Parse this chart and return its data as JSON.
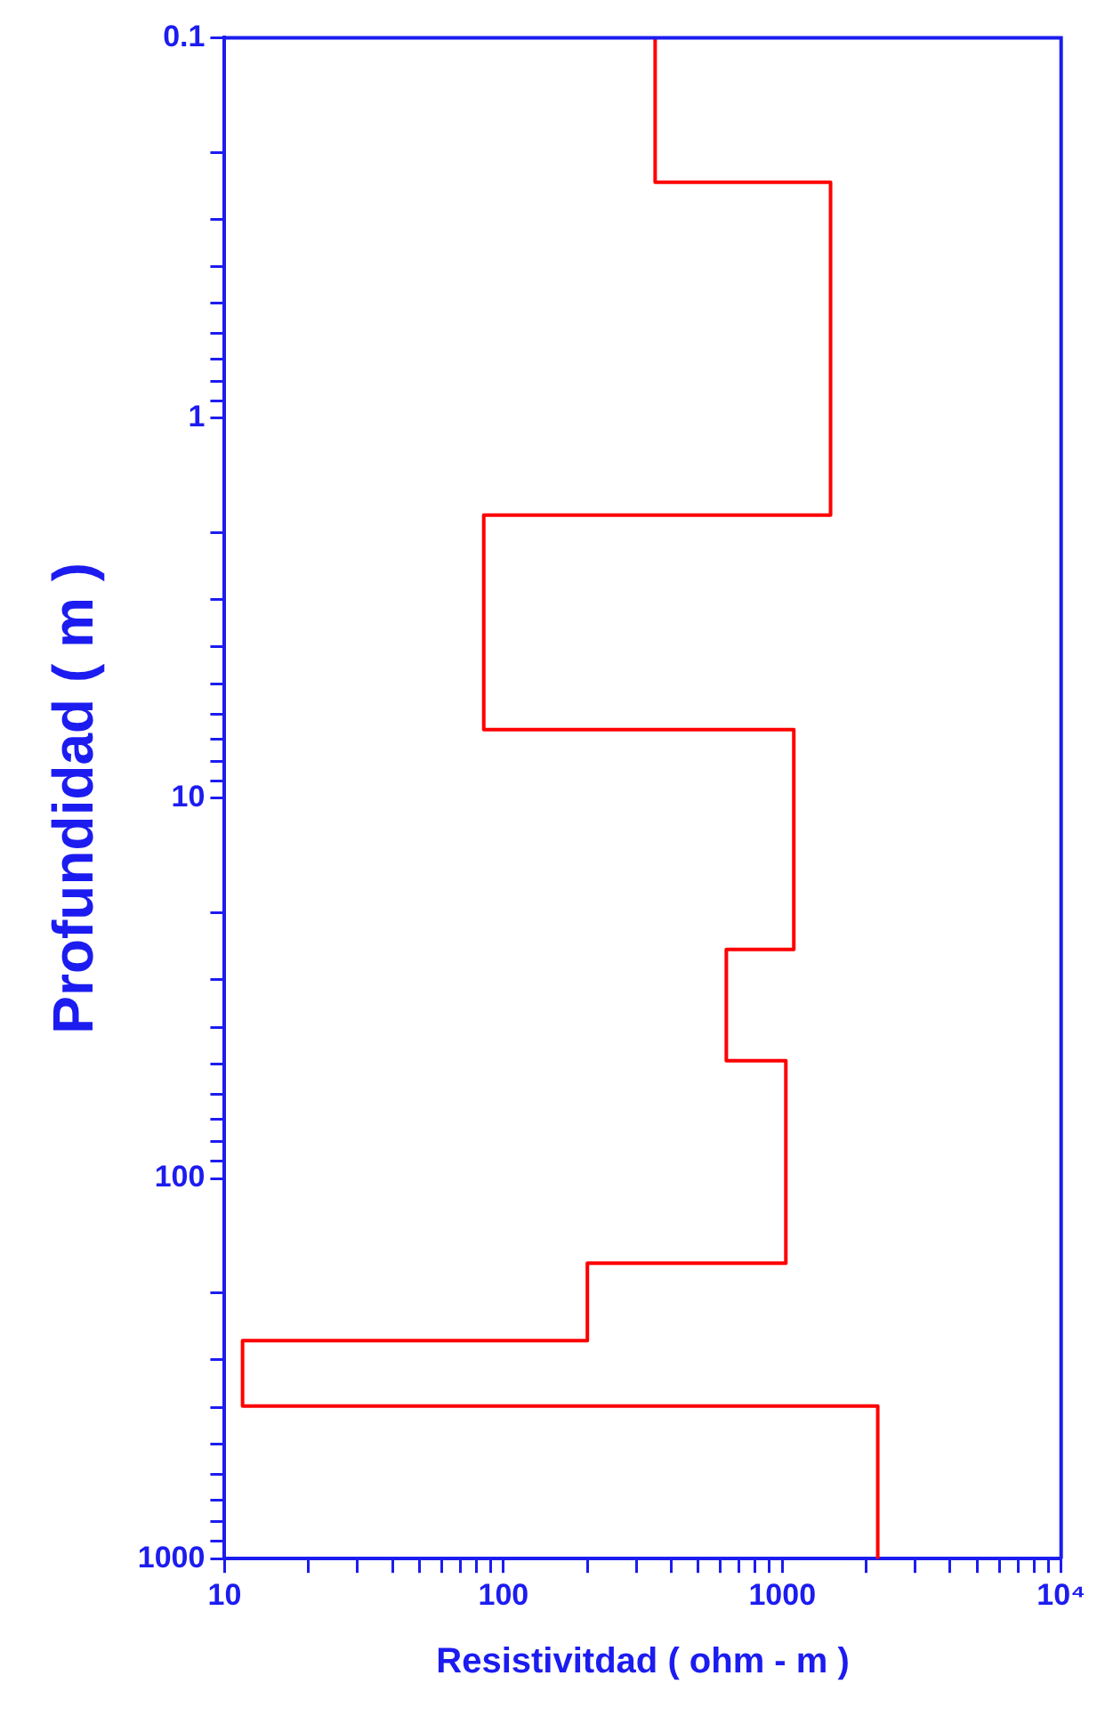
{
  "chart_data": {
    "type": "line",
    "xlabel": "Resistivitdad ( ohm - m )",
    "ylabel": "Profundidad ( m )",
    "log": "xy",
    "grid": false,
    "legend": false,
    "marker": "none",
    "line_style": "solid",
    "xlim": [
      10,
      10000
    ],
    "ylim": [
      1000,
      0.1
    ],
    "xticks": [
      10,
      {
        "value": 20,
        "label": null
      },
      {
        "value": 30,
        "label": null
      },
      {
        "value": 40,
        "label": null
      },
      {
        "value": 50,
        "label": null
      },
      {
        "value": 60,
        "label": null
      },
      {
        "value": 70,
        "label": null
      },
      {
        "value": 80,
        "label": null
      },
      {
        "value": 90,
        "label": null
      },
      100,
      {
        "value": 200,
        "label": null
      },
      {
        "value": 300,
        "label": null
      },
      {
        "value": 400,
        "label": null
      },
      {
        "value": 500,
        "label": null
      },
      {
        "value": 600,
        "label": null
      },
      {
        "value": 700,
        "label": null
      },
      {
        "value": 800,
        "label": null
      },
      {
        "value": 900,
        "label": null
      },
      1000,
      {
        "value": 2000,
        "label": null
      },
      {
        "value": 3000,
        "label": null
      },
      {
        "value": 4000,
        "label": null
      },
      {
        "value": 5000,
        "label": null
      },
      {
        "value": 6000,
        "label": null
      },
      {
        "value": 7000,
        "label": null
      },
      {
        "value": 8000,
        "label": null
      },
      {
        "value": 9000,
        "label": null
      },
      {
        "value": 10000,
        "label": "10⁴"
      }
    ],
    "yticks": [
      0.1,
      {
        "value": 0.2,
        "label": null
      },
      {
        "value": 0.3,
        "label": null
      },
      {
        "value": 0.4,
        "label": null
      },
      {
        "value": 0.5,
        "label": null
      },
      {
        "value": 0.6,
        "label": null
      },
      {
        "value": 0.7,
        "label": null
      },
      {
        "value": 0.8,
        "label": null
      },
      {
        "value": 0.9,
        "label": null
      },
      1,
      {
        "value": 2,
        "label": null
      },
      {
        "value": 3,
        "label": null
      },
      {
        "value": 4,
        "label": null
      },
      {
        "value": 5,
        "label": null
      },
      {
        "value": 6,
        "label": null
      },
      {
        "value": 7,
        "label": null
      },
      {
        "value": 8,
        "label": null
      },
      {
        "value": 9,
        "label": null
      },
      10,
      {
        "value": 20,
        "label": null
      },
      {
        "value": 30,
        "label": null
      },
      {
        "value": 40,
        "label": null
      },
      {
        "value": 50,
        "label": null
      },
      {
        "value": 60,
        "label": null
      },
      {
        "value": 70,
        "label": null
      },
      {
        "value": 80,
        "label": null
      },
      {
        "value": 90,
        "label": null
      },
      100,
      {
        "value": 200,
        "label": null
      },
      {
        "value": 300,
        "label": null
      },
      {
        "value": 400,
        "label": null
      },
      {
        "value": 500,
        "label": null
      },
      {
        "value": 600,
        "label": null
      },
      {
        "value": 700,
        "label": null
      },
      {
        "value": 800,
        "label": null
      },
      {
        "value": 900,
        "label": null
      },
      1000
    ],
    "series": [
      {
        "color": "#ff0000",
        "x": [
          350,
          350,
          1490,
          1490,
          85,
          85,
          1100,
          1100,
          630,
          630,
          1030,
          1030,
          200,
          200,
          11.6,
          11.6,
          2200,
          2200
        ],
        "values": [
          0.1,
          0.24,
          0.24,
          1.8,
          1.8,
          6.6,
          6.6,
          25,
          25,
          49,
          49,
          167,
          167,
          267,
          267,
          397,
          397,
          1000
        ]
      }
    ]
  }
}
